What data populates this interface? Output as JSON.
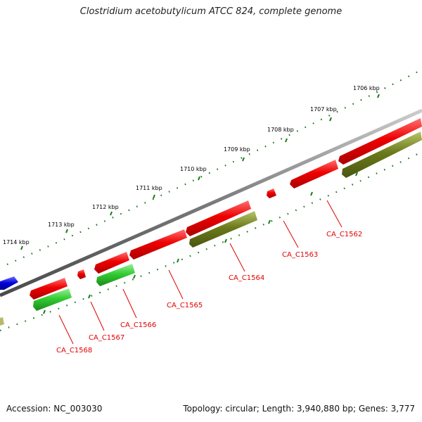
{
  "title": "Clostridium acetobutylicum ATCC 824, complete genome",
  "footer": {
    "accession": "Accession: NC_003030",
    "summary": "Topology: circular; Length: 3,940,880 bp; Genes: 3,777"
  },
  "kbp_labels": [
    "1706 kbp",
    "1707 kbp",
    "1708 kbp",
    "1709 kbp",
    "1710 kbp",
    "1711 kbp",
    "1712 kbp",
    "1713 kbp",
    "1714 kbp"
  ],
  "gene_labels": [
    "CA_C1562",
    "CA_C1563",
    "CA_C1564",
    "CA_C1565",
    "CA_C1566",
    "CA_C1567",
    "CA_C1568"
  ],
  "colors": {
    "backbone": "#777777",
    "gene_red": "#ee0000",
    "gene_green": "#33cc33",
    "gene_olive": "#6b7a1a",
    "gene_blue": "#0000dd",
    "gene_khaki": "#b8b86a",
    "tick": "#1a7a1a",
    "label_red": "#e00000"
  }
}
